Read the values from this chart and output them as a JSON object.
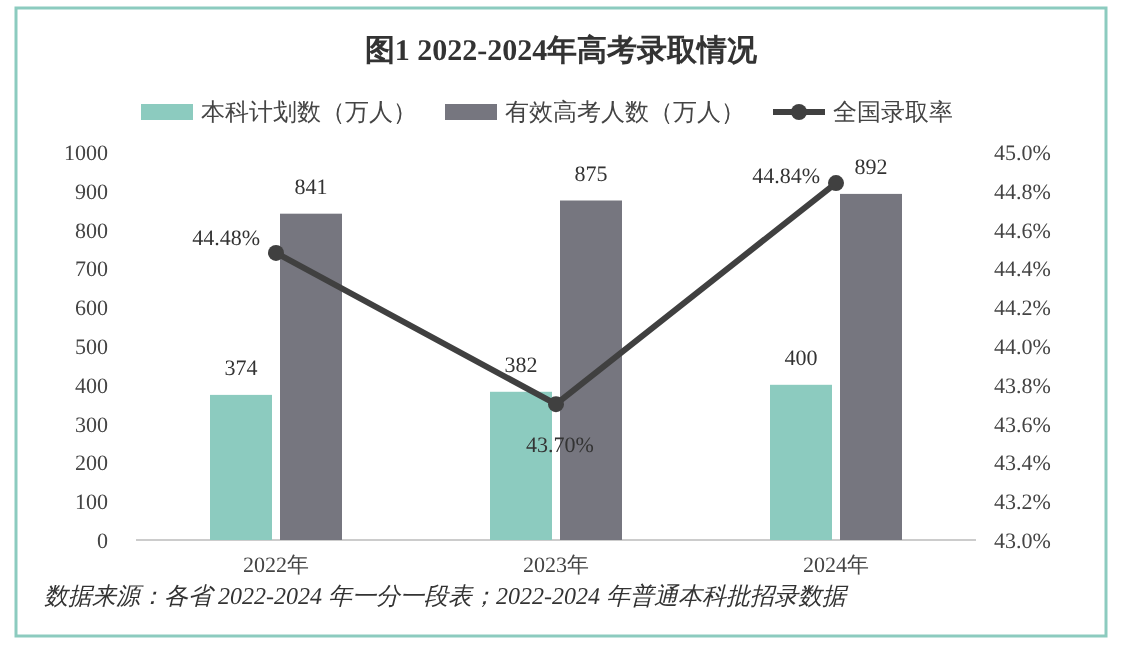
{
  "chart_data": {
    "type": "bar",
    "title": "图1  2022-2024年高考录取情况",
    "categories": [
      "2022年",
      "2023年",
      "2024年"
    ],
    "series": [
      {
        "name": "本科计划数（万人）",
        "color": "#8ccbbf",
        "values": [
          374,
          382,
          400
        ],
        "value_labels": [
          "374",
          "382",
          "400"
        ]
      },
      {
        "name": "有效高考人数（万人）",
        "color": "#76767f",
        "values": [
          841,
          875,
          892
        ],
        "value_labels": [
          "841",
          "875",
          "892"
        ]
      },
      {
        "name": "全国录取率",
        "type": "line",
        "axis": "y2",
        "color": "#404040",
        "marker": "circle",
        "values": [
          44.48,
          43.7,
          44.84
        ],
        "value_labels": [
          "44.48%",
          "43.70%",
          "44.84%"
        ]
      }
    ],
    "ylim": [
      0,
      1000
    ],
    "yticks": [
      0,
      100,
      200,
      300,
      400,
      500,
      600,
      700,
      800,
      900,
      1000
    ],
    "y2lim": [
      43.0,
      45.0
    ],
    "y2ticks": [
      {
        "value": 43.0,
        "label": "43.0%"
      },
      {
        "value": 43.2,
        "label": "43.2%"
      },
      {
        "value": 43.4,
        "label": "43.4%"
      },
      {
        "value": 43.6,
        "label": "43.6%"
      },
      {
        "value": 43.8,
        "label": "43.8%"
      },
      {
        "value": 44.0,
        "label": "44.0%"
      },
      {
        "value": 44.2,
        "label": "44.2%"
      },
      {
        "value": 44.4,
        "label": "44.4%"
      },
      {
        "value": 44.6,
        "label": "44.6%"
      },
      {
        "value": 44.8,
        "label": "44.8%"
      },
      {
        "value": 45.0,
        "label": "45.0%"
      }
    ],
    "legend": "top",
    "grid": false,
    "annotations": [
      "数据来源：各省 2022-2024 年一分一段表；2022-2024 年普通本科批招录数据"
    ]
  }
}
